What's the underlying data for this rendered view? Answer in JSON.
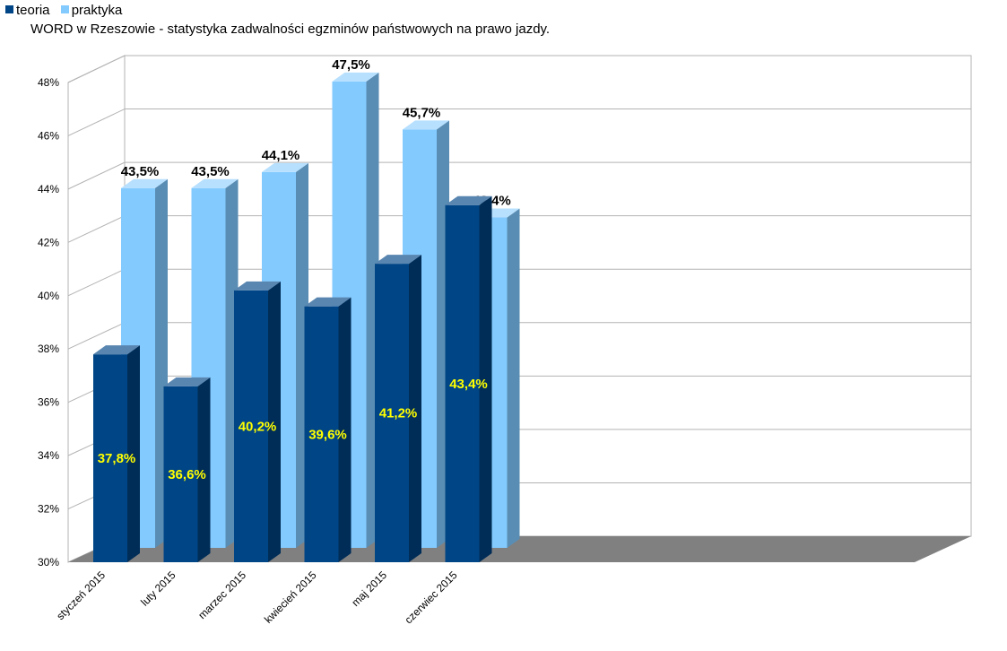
{
  "chart_data": {
    "type": "bar",
    "title": "WORD w Rzeszowie - statystyka zadwalności egzminów państwowych na prawo jazdy.",
    "xlabel": "",
    "ylabel": "",
    "categories": [
      "styczeń 2015",
      "luty 2015",
      "marzec 2015",
      "kwiecień 2015",
      "maj 2015",
      "czerwiec 2015"
    ],
    "series": [
      {
        "name": "teoria",
        "values": [
          37.8,
          36.6,
          40.2,
          39.6,
          41.2,
          43.4
        ],
        "labels": [
          "37,8%",
          "36,6%",
          "40,2%",
          "39,6%",
          "41,2%",
          "43,4%"
        ],
        "color": "#004586",
        "label_color": "#ffff00"
      },
      {
        "name": "praktyka",
        "values": [
          43.5,
          43.5,
          44.1,
          47.5,
          45.7,
          42.4
        ],
        "labels": [
          "43,5%",
          "43,5%",
          "44,1%",
          "47,5%",
          "45,7%",
          "42,4%"
        ],
        "color": "#83caff",
        "label_color": "#000000"
      }
    ],
    "ylim": [
      30,
      48
    ],
    "yticks": [
      "30%",
      "32%",
      "34%",
      "36%",
      "38%",
      "40%",
      "42%",
      "44%",
      "46%",
      "48%"
    ],
    "grid": true,
    "legend_position": "top-left",
    "style": "3d"
  }
}
